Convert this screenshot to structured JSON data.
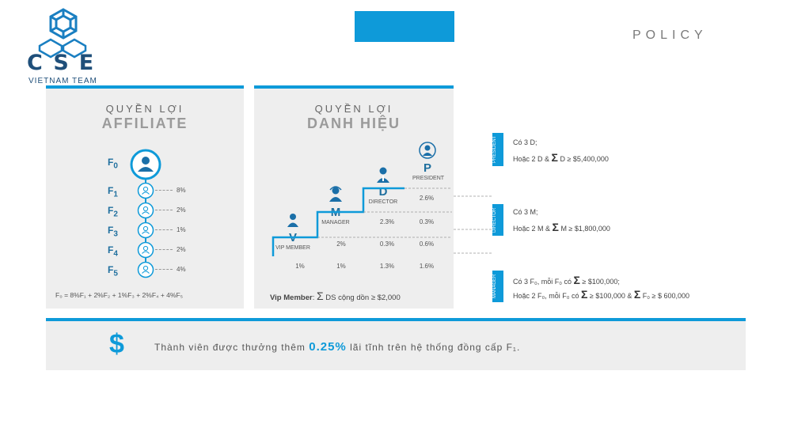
{
  "logo": {
    "text": "CSE",
    "subtitle": "VIETNAM TEAM",
    "color": "#1f4f7a"
  },
  "header": {
    "title": "POLICY",
    "accent": "#0e9ad9"
  },
  "affiliate": {
    "title_line1": "QUYỀN LỢI",
    "title_line2": "AFFILIATE",
    "levels": [
      {
        "label": "F",
        "sub": "0",
        "percent": ""
      },
      {
        "label": "F",
        "sub": "1",
        "percent": "8%"
      },
      {
        "label": "F",
        "sub": "2",
        "percent": "2%"
      },
      {
        "label": "F",
        "sub": "3",
        "percent": "1%"
      },
      {
        "label": "F",
        "sub": "4",
        "percent": "2%"
      },
      {
        "label": "F",
        "sub": "5",
        "percent": "4%"
      }
    ],
    "formula": "F₀ = 8%F₁ + 2%F₂ + 1%F₃ + 2%F₄ + 4%F₅"
  },
  "danh_hieu": {
    "title_line1": "QUYỀN LỢI",
    "title_line2": "DANH HIỆU",
    "ranks": [
      {
        "letter": "V",
        "name": "VIP MEMBER"
      },
      {
        "letter": "M",
        "name": "MANAGER"
      },
      {
        "letter": "D",
        "name": "DIRECTOR"
      },
      {
        "letter": "P",
        "name": "PRESIDENT"
      }
    ],
    "grid": {
      "row_p": [
        "2.6%"
      ],
      "row_d": [
        "2.3%",
        "0.3%"
      ],
      "row_m": [
        "2%",
        "0.3%",
        "0.6%"
      ],
      "row_v": [
        "1%",
        "1%",
        "1.3%",
        "1.6%"
      ]
    },
    "vip_label": "Vip Member",
    "vip_condition": "DS cộng dồn ≥  $2,000"
  },
  "conditions": {
    "president": {
      "tag": "PRESIDENT",
      "line1": "Có 3 D;",
      "line2a": "Hoặc 2 D & ",
      "line2b": " D ≥ $5,400,000"
    },
    "director": {
      "tag": "DIRECTOR",
      "line1": "Có 3 M;",
      "line2a": "Hoặc 2 M & ",
      "line2b": " M ≥ $1,800,000"
    },
    "manager": {
      "tag": "MANAGER",
      "line1a": "Có 3 F₀, mỗi F₀ có ",
      "line1b": " ≥ $100,000;",
      "line2a": "Hoặc 2 F₀, mỗi F₀ có ",
      "line2b": " ≥ $100,000 & ",
      "line2c": " F₀ ≥ $ 600,000"
    },
    "sigma": "Σ"
  },
  "bonus": {
    "symbol": "$",
    "text_before": "Thành viên được thưởng thêm ",
    "highlight": "0.25%",
    "text_after": " lãi tĩnh trên hệ thống đồng cấp F₁."
  }
}
